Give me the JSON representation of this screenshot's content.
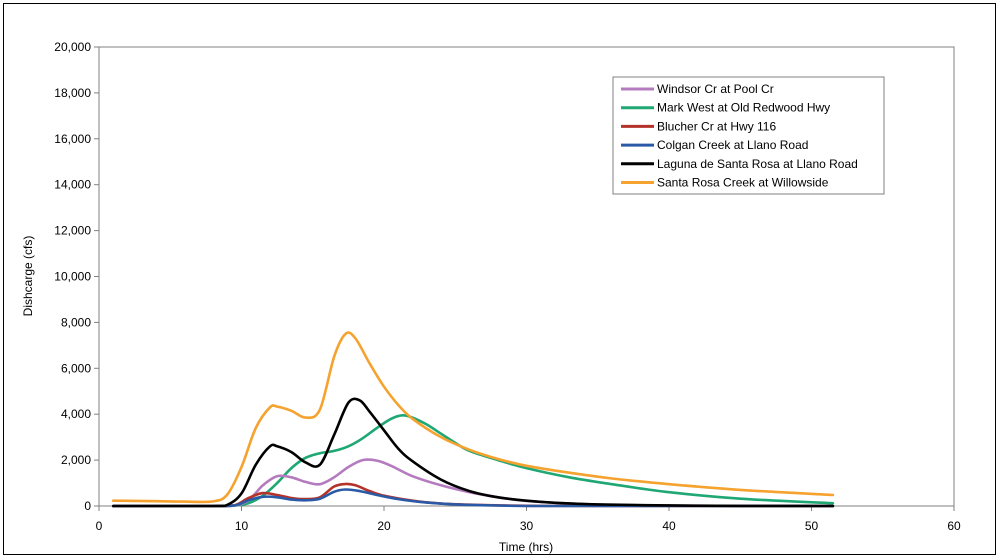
{
  "chart_data": {
    "type": "line",
    "title": "",
    "xlabel": "Time (hrs)",
    "ylabel": "Dishcarge (cfs)",
    "xlim": [
      0,
      60
    ],
    "ylim": [
      0,
      20000
    ],
    "xticks": [
      0,
      10,
      20,
      30,
      40,
      50,
      60
    ],
    "yticks": [
      0,
      2000,
      4000,
      6000,
      8000,
      10000,
      12000,
      14000,
      16000,
      18000,
      20000
    ],
    "xtick_labels": [
      "0",
      "10",
      "20",
      "30",
      "40",
      "50",
      "60"
    ],
    "ytick_labels": [
      "0",
      "2,000",
      "4,000",
      "6,000",
      "8,000",
      "10,000",
      "12,000",
      "14,000",
      "16,000",
      "18,000",
      "20,000"
    ],
    "grid": false,
    "legend_position": "top-right",
    "series": [
      {
        "name": "Windsor Cr at Pool Cr",
        "color": "#b57bbf",
        "points": [
          [
            1,
            0
          ],
          [
            8,
            0
          ],
          [
            9.5,
            20
          ],
          [
            10.5,
            250
          ],
          [
            11.5,
            900
          ],
          [
            12.5,
            1300
          ],
          [
            13.5,
            1250
          ],
          [
            14.5,
            1050
          ],
          [
            15.5,
            950
          ],
          [
            16.5,
            1250
          ],
          [
            17.5,
            1700
          ],
          [
            18.5,
            2000
          ],
          [
            19.5,
            1980
          ],
          [
            20.5,
            1750
          ],
          [
            22,
            1300
          ],
          [
            24,
            900
          ],
          [
            26,
            600
          ],
          [
            28,
            380
          ],
          [
            30,
            220
          ],
          [
            33,
            110
          ],
          [
            36,
            50
          ],
          [
            40,
            20
          ],
          [
            45,
            5
          ],
          [
            51.5,
            0
          ]
        ]
      },
      {
        "name": "Mark West at Old Redwood Hwy",
        "color": "#1fa774",
        "points": [
          [
            1,
            0
          ],
          [
            8,
            0
          ],
          [
            9.5,
            20
          ],
          [
            10.5,
            120
          ],
          [
            11.5,
            450
          ],
          [
            12.5,
            1000
          ],
          [
            13.5,
            1650
          ],
          [
            14.5,
            2100
          ],
          [
            15.5,
            2300
          ],
          [
            16.5,
            2400
          ],
          [
            17.5,
            2600
          ],
          [
            18.5,
            2950
          ],
          [
            19.5,
            3400
          ],
          [
            20.5,
            3800
          ],
          [
            21.3,
            3950
          ],
          [
            22,
            3850
          ],
          [
            23,
            3550
          ],
          [
            24,
            3150
          ],
          [
            25,
            2750
          ],
          [
            26,
            2400
          ],
          [
            28,
            2000
          ],
          [
            30,
            1650
          ],
          [
            33,
            1250
          ],
          [
            36,
            950
          ],
          [
            40,
            600
          ],
          [
            45,
            320
          ],
          [
            51.5,
            120
          ]
        ]
      },
      {
        "name": "Blucher Cr at Hwy 116",
        "color": "#b5322a",
        "points": [
          [
            1,
            0
          ],
          [
            8,
            0
          ],
          [
            9.5,
            30
          ],
          [
            10.5,
            350
          ],
          [
            11.5,
            560
          ],
          [
            12.5,
            480
          ],
          [
            13.5,
            350
          ],
          [
            14.5,
            300
          ],
          [
            15.5,
            380
          ],
          [
            16.5,
            850
          ],
          [
            17.3,
            960
          ],
          [
            18,
            900
          ],
          [
            19,
            650
          ],
          [
            20,
            450
          ],
          [
            22,
            230
          ],
          [
            24,
            110
          ],
          [
            27,
            40
          ],
          [
            30,
            10
          ],
          [
            35,
            0
          ],
          [
            51.5,
            0
          ]
        ]
      },
      {
        "name": "Colgan Creek at Llano Road",
        "color": "#2a5aa6",
        "points": [
          [
            1,
            0
          ],
          [
            8,
            0
          ],
          [
            9.5,
            20
          ],
          [
            10.5,
            250
          ],
          [
            11.5,
            400
          ],
          [
            12.5,
            380
          ],
          [
            13.5,
            280
          ],
          [
            14.5,
            250
          ],
          [
            15.5,
            320
          ],
          [
            16.5,
            620
          ],
          [
            17.3,
            720
          ],
          [
            18.3,
            650
          ],
          [
            19.5,
            480
          ],
          [
            21,
            300
          ],
          [
            23,
            150
          ],
          [
            25,
            70
          ],
          [
            28,
            20
          ],
          [
            32,
            0
          ],
          [
            51.5,
            0
          ]
        ]
      },
      {
        "name": "Laguna de Santa Rosa at Llano Road",
        "color": "#000000",
        "points": [
          [
            1,
            0
          ],
          [
            8,
            0
          ],
          [
            9,
            50
          ],
          [
            10,
            550
          ],
          [
            11,
            1800
          ],
          [
            12,
            2600
          ],
          [
            12.5,
            2600
          ],
          [
            13.5,
            2350
          ],
          [
            14.5,
            1900
          ],
          [
            15.5,
            1800
          ],
          [
            16.5,
            3100
          ],
          [
            17.5,
            4500
          ],
          [
            18.3,
            4600
          ],
          [
            19,
            4100
          ],
          [
            20,
            3300
          ],
          [
            21,
            2500
          ],
          [
            22,
            1950
          ],
          [
            24,
            1150
          ],
          [
            26,
            650
          ],
          [
            28,
            380
          ],
          [
            30,
            230
          ],
          [
            32,
            140
          ],
          [
            35,
            70
          ],
          [
            40,
            25
          ],
          [
            45,
            5
          ],
          [
            51.5,
            0
          ]
        ]
      },
      {
        "name": "Santa Rosa Creek at Willowside",
        "color": "#f5a22f",
        "points": [
          [
            1,
            230
          ],
          [
            4,
            210
          ],
          [
            6,
            190
          ],
          [
            8,
            200
          ],
          [
            9,
            500
          ],
          [
            10,
            1700
          ],
          [
            11,
            3400
          ],
          [
            12,
            4300
          ],
          [
            12.5,
            4330
          ],
          [
            13.5,
            4150
          ],
          [
            14.5,
            3850
          ],
          [
            15.5,
            4200
          ],
          [
            16.5,
            6500
          ],
          [
            17.3,
            7500
          ],
          [
            18,
            7300
          ],
          [
            19,
            6200
          ],
          [
            20,
            5200
          ],
          [
            21,
            4400
          ],
          [
            22,
            3800
          ],
          [
            24,
            3000
          ],
          [
            26,
            2450
          ],
          [
            28,
            2050
          ],
          [
            30,
            1750
          ],
          [
            33,
            1450
          ],
          [
            36,
            1200
          ],
          [
            40,
            950
          ],
          [
            45,
            700
          ],
          [
            51.5,
            480
          ]
        ]
      }
    ]
  }
}
